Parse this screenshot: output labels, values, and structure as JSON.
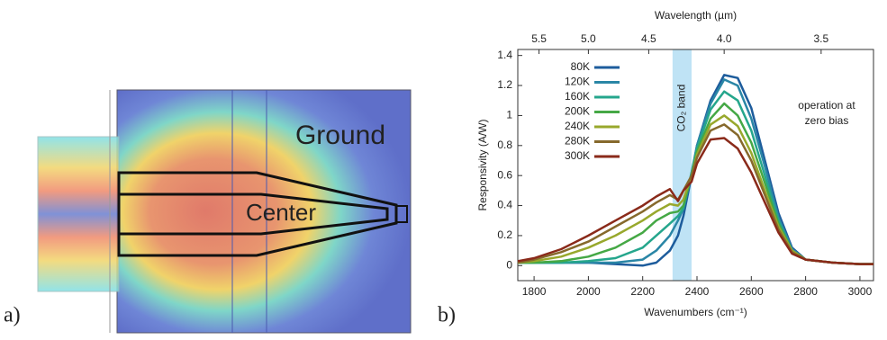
{
  "panel_labels": [
    "a)",
    "b)"
  ],
  "diagram": {
    "labels": [
      "Ground",
      "Center"
    ]
  },
  "chart_data": {
    "type": "line",
    "x_label": "Wavenumbers (cm⁻¹)",
    "x2_label": "Wavelength (µm)",
    "y_label": "Responsivity (A/W)",
    "x": [
      1740,
      1800,
      1900,
      2000,
      2100,
      2200,
      2250,
      2300,
      2330,
      2350,
      2380,
      2400,
      2450,
      2500,
      2550,
      2600,
      2650,
      2700,
      2750,
      2800,
      2900,
      3000,
      3050
    ],
    "series": [
      {
        "name": "80K",
        "color": "#1d5c9c",
        "values": [
          0.02,
          0.02,
          0.02,
          0.02,
          0.01,
          0,
          0.02,
          0.1,
          0.2,
          0.33,
          0.6,
          0.8,
          1.1,
          1.27,
          1.25,
          1.05,
          0.7,
          0.35,
          0.12,
          0.04,
          0.02,
          0.01,
          0.01
        ]
      },
      {
        "name": "120K",
        "color": "#2a86a6",
        "values": [
          0.02,
          0.02,
          0.02,
          0.02,
          0.02,
          0.04,
          0.1,
          0.2,
          0.3,
          0.38,
          0.62,
          0.8,
          1.08,
          1.24,
          1.2,
          0.98,
          0.66,
          0.32,
          0.11,
          0.04,
          0.02,
          0.01,
          0.01
        ]
      },
      {
        "name": "160K",
        "color": "#25a68c",
        "values": [
          0.02,
          0.02,
          0.02,
          0.03,
          0.05,
          0.12,
          0.2,
          0.28,
          0.33,
          0.38,
          0.62,
          0.78,
          1.04,
          1.16,
          1.1,
          0.9,
          0.6,
          0.3,
          0.1,
          0.04,
          0.02,
          0.01,
          0.01
        ]
      },
      {
        "name": "200K",
        "color": "#45a845",
        "values": [
          0.02,
          0.02,
          0.03,
          0.06,
          0.12,
          0.22,
          0.3,
          0.35,
          0.36,
          0.4,
          0.6,
          0.76,
          0.98,
          1.08,
          1.0,
          0.82,
          0.55,
          0.28,
          0.1,
          0.04,
          0.02,
          0.01,
          0.01
        ]
      },
      {
        "name": "240K",
        "color": "#98a82c",
        "values": [
          0.02,
          0.03,
          0.06,
          0.12,
          0.2,
          0.3,
          0.36,
          0.41,
          0.4,
          0.44,
          0.6,
          0.74,
          0.94,
          1.0,
          0.93,
          0.75,
          0.5,
          0.26,
          0.1,
          0.04,
          0.02,
          0.01,
          0.01
        ]
      },
      {
        "name": "280K",
        "color": "#86692c",
        "values": [
          0.02,
          0.04,
          0.09,
          0.16,
          0.26,
          0.36,
          0.42,
          0.47,
          0.44,
          0.5,
          0.6,
          0.72,
          0.9,
          0.94,
          0.87,
          0.7,
          0.47,
          0.24,
          0.09,
          0.04,
          0.02,
          0.01,
          0.01
        ]
      },
      {
        "name": "300K",
        "color": "#8a2a1a",
        "values": [
          0.03,
          0.05,
          0.11,
          0.2,
          0.3,
          0.4,
          0.46,
          0.51,
          0.43,
          0.5,
          0.56,
          0.68,
          0.84,
          0.85,
          0.78,
          0.62,
          0.42,
          0.22,
          0.08,
          0.04,
          0.02,
          0.01,
          0.01
        ]
      }
    ],
    "xlim": [
      1740,
      3050
    ],
    "xticks": [
      1800,
      2000,
      2200,
      2400,
      2600,
      2800,
      3000
    ],
    "x2ticks": [
      {
        "value": 5.5,
        "label": "5.5"
      },
      {
        "value": 5,
        "label": "5.0"
      },
      {
        "value": 4.5,
        "label": "4.5"
      },
      {
        "value": 4,
        "label": "4.0"
      },
      {
        "value": 3.5,
        "label": "3.5"
      }
    ],
    "ylim": [
      -0.1,
      1.44
    ],
    "yticks": [
      0,
      0.2,
      0.4,
      0.6,
      0.8,
      1,
      1.2,
      1.4
    ],
    "band": {
      "text": "CO₂ band",
      "x": [
        2310,
        2380
      ],
      "color": "#bfe3f5"
    },
    "note": [
      "operation at",
      "zero bias"
    ],
    "legend": "upper left"
  }
}
